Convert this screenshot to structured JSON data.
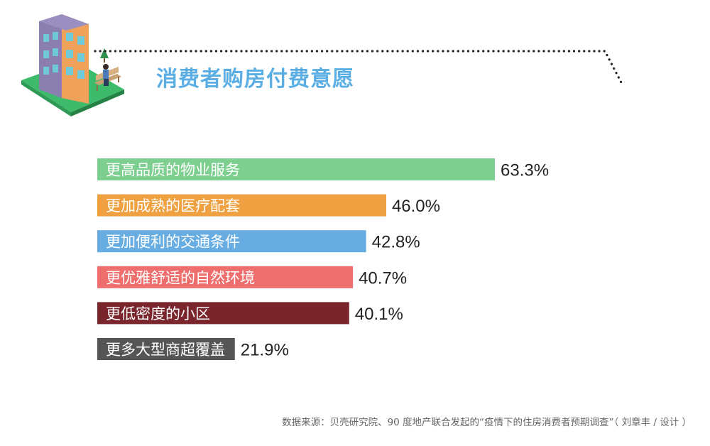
{
  "header": {
    "title": "消费者购房付费意愿"
  },
  "chart_data": {
    "type": "bar",
    "orientation": "horizontal",
    "title": "消费者购房付费意愿",
    "categories": [
      "更高品质的物业服务",
      "更加成熟的医疗配套",
      "更加便利的交通条件",
      "更优雅舒适的自然环境",
      "更低密度的小区",
      "更多大型商超覆盖"
    ],
    "values": [
      63.3,
      46.0,
      42.8,
      40.7,
      40.1,
      21.9
    ],
    "value_labels": [
      "63.3%",
      "46.0%",
      "42.8%",
      "40.7%",
      "40.1%",
      "21.9%"
    ],
    "colors": [
      "#7dcf8f",
      "#efa040",
      "#68ade2",
      "#ee6d6d",
      "#7a242c",
      "#555555"
    ],
    "xlabel": "",
    "ylabel": "",
    "grid": false,
    "legend": "none"
  },
  "footer": {
    "source": "数据来源：贝壳研究院、90 度地产联合发起的“疫情下的住房消费者预期调查”（ 刘章丰 / 设计 ）"
  }
}
